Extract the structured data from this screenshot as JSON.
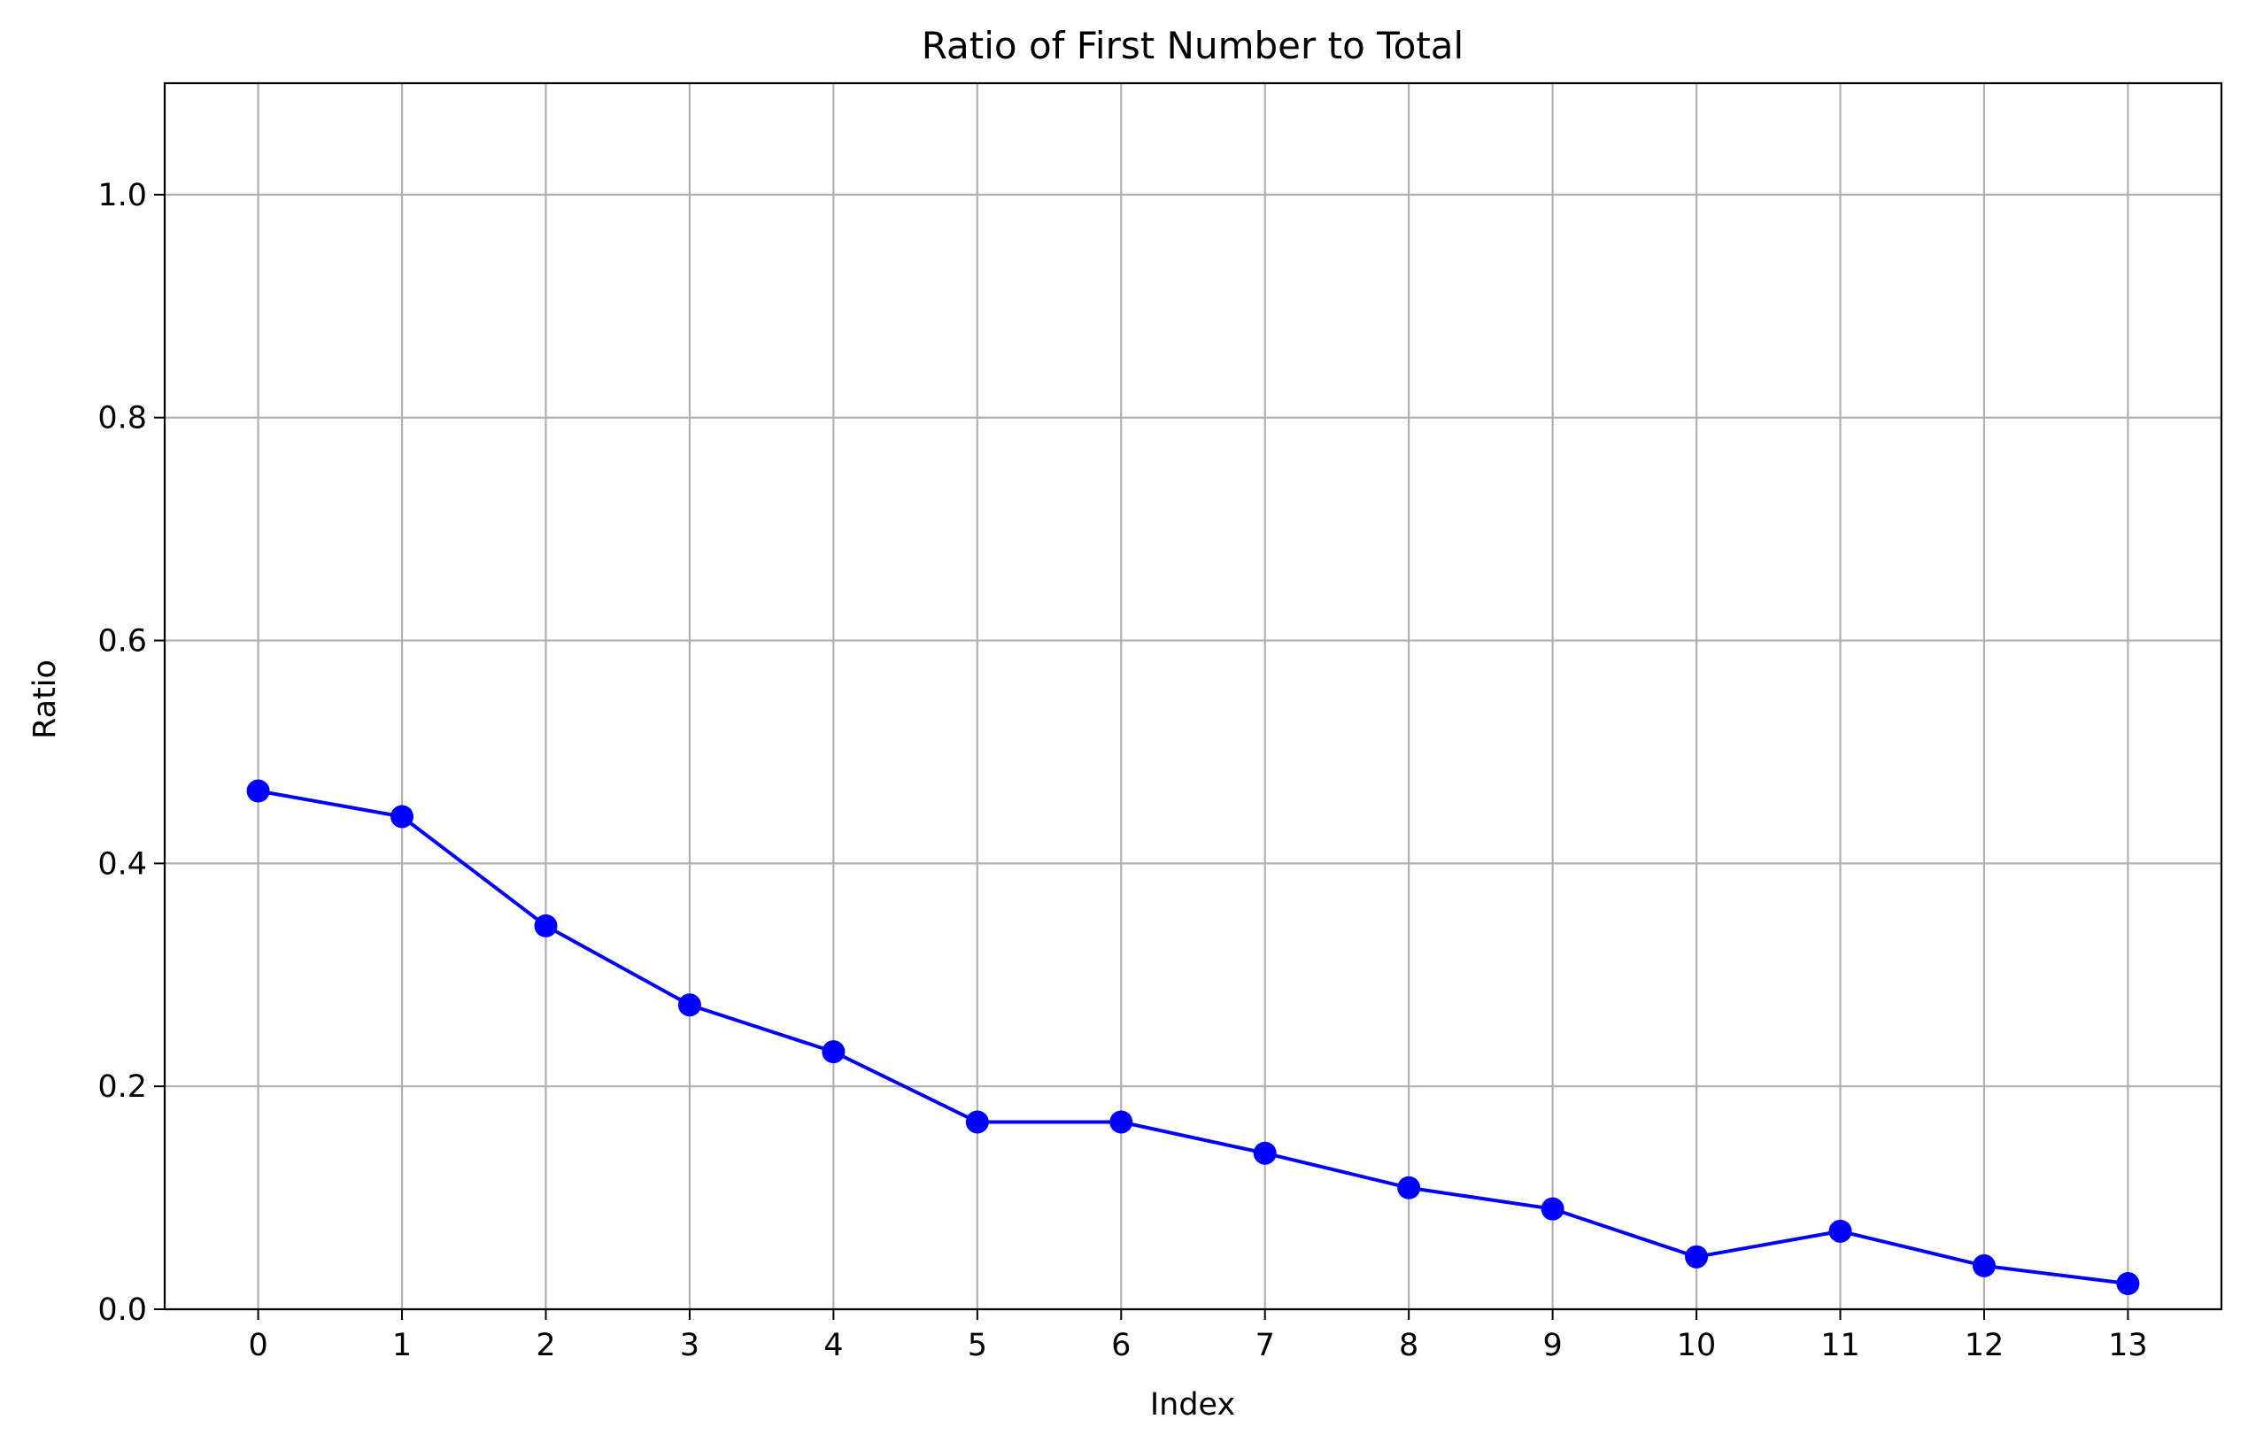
{
  "chart_data": {
    "type": "line",
    "title": "Ratio of First Number to Total",
    "xlabel": "Index",
    "ylabel": "Ratio",
    "x": [
      0,
      1,
      2,
      3,
      4,
      5,
      6,
      7,
      8,
      9,
      10,
      11,
      12,
      13
    ],
    "series": [
      {
        "name": "Ratio",
        "color": "#0000ff",
        "marker": "circle",
        "values": [
          0.465,
          0.442,
          0.344,
          0.273,
          0.231,
          0.168,
          0.168,
          0.14,
          0.109,
          0.09,
          0.047,
          0.07,
          0.039,
          0.023
        ]
      }
    ],
    "xlim": [
      -0.65,
      13.65
    ],
    "ylim": [
      0.0,
      1.1
    ],
    "xticks": [
      0,
      1,
      2,
      3,
      4,
      5,
      6,
      7,
      8,
      9,
      10,
      11,
      12,
      13
    ],
    "xtick_labels": [
      "0",
      "1",
      "2",
      "3",
      "4",
      "5",
      "6",
      "7",
      "8",
      "9",
      "10",
      "11",
      "12",
      "13"
    ],
    "yticks": [
      0.0,
      0.2,
      0.4,
      0.6,
      0.8,
      1.0
    ],
    "ytick_labels": [
      "0.0",
      "0.2",
      "0.4",
      "0.6",
      "0.8",
      "1.0"
    ],
    "grid": true
  }
}
